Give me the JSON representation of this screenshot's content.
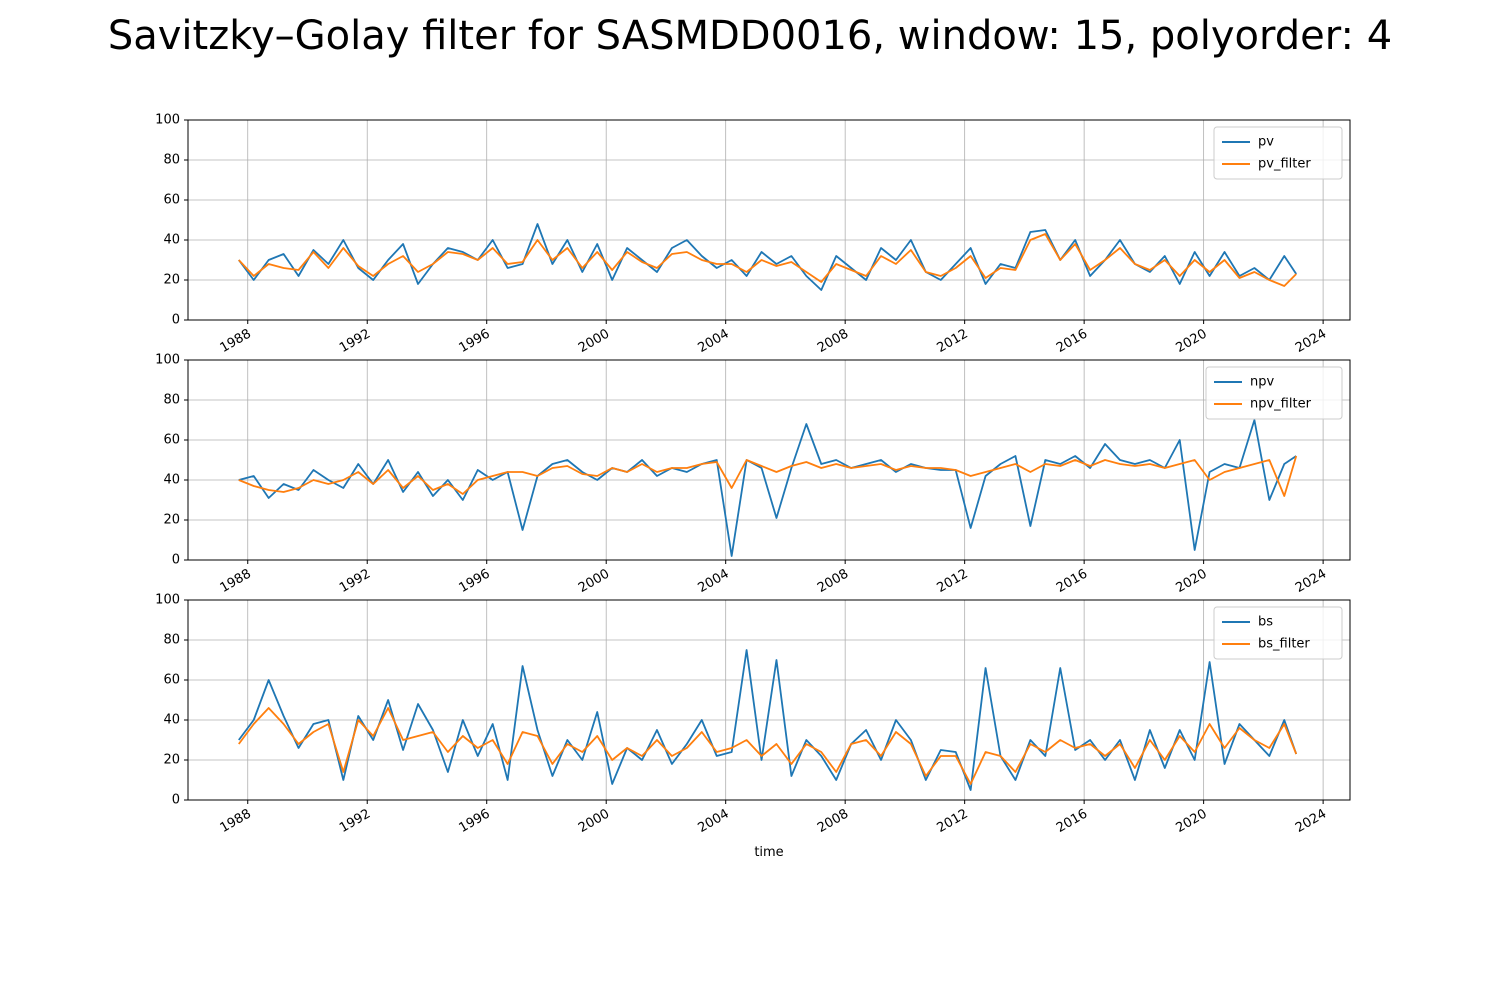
{
  "title": "Savitzky–Golay filter for SASMDD0016, window: 15, polyorder: 4",
  "chart_data": [
    {
      "type": "line",
      "legend": "upper right",
      "grid": true,
      "xlim": [
        1986.0,
        2024.9
      ],
      "xticks": [
        1988,
        1992,
        1996,
        2000,
        2004,
        2008,
        2012,
        2016,
        2020,
        2024
      ],
      "ylim": [
        0,
        100
      ],
      "yticks": [
        0,
        20,
        40,
        60,
        80,
        100
      ],
      "x": [
        1987.7,
        1988.2,
        1988.7,
        1989.2,
        1989.7,
        1990.2,
        1990.7,
        1991.2,
        1991.7,
        1992.2,
        1992.7,
        1993.2,
        1993.7,
        1994.2,
        1994.7,
        1995.2,
        1995.7,
        1996.2,
        1996.7,
        1997.2,
        1997.7,
        1998.2,
        1998.7,
        1999.2,
        1999.7,
        2000.2,
        2000.7,
        2001.2,
        2001.7,
        2002.2,
        2002.7,
        2003.2,
        2003.7,
        2004.2,
        2004.7,
        2005.2,
        2005.7,
        2006.2,
        2006.7,
        2007.2,
        2007.7,
        2008.2,
        2008.7,
        2009.2,
        2009.7,
        2010.2,
        2010.7,
        2011.2,
        2011.7,
        2012.2,
        2012.7,
        2013.2,
        2013.7,
        2014.2,
        2014.7,
        2015.2,
        2015.7,
        2016.2,
        2016.7,
        2017.2,
        2017.7,
        2018.2,
        2018.7,
        2019.2,
        2019.7,
        2020.2,
        2020.7,
        2021.2,
        2021.7,
        2022.2,
        2022.7,
        2023.1
      ],
      "series": [
        {
          "name": "pv",
          "color": "#1f77b4",
          "values": [
            30,
            20,
            30,
            33,
            22,
            35,
            28,
            40,
            26,
            20,
            30,
            38,
            18,
            28,
            36,
            34,
            30,
            40,
            26,
            28,
            48,
            28,
            40,
            24,
            38,
            20,
            36,
            30,
            24,
            36,
            40,
            32,
            26,
            30,
            22,
            34,
            28,
            32,
            22,
            15,
            32,
            26,
            20,
            36,
            30,
            40,
            24,
            20,
            28,
            36,
            18,
            28,
            26,
            44,
            45,
            30,
            40,
            22,
            30,
            40,
            28,
            24,
            32,
            18,
            34,
            22,
            34,
            22,
            26,
            20,
            32,
            23
          ]
        },
        {
          "name": "pv_filter",
          "color": "#ff7f0e",
          "values": [
            30,
            22,
            28,
            26,
            25,
            34,
            26,
            36,
            27,
            22,
            28,
            32,
            24,
            28,
            34,
            33,
            30,
            36,
            28,
            29,
            40,
            30,
            36,
            26,
            34,
            25,
            34,
            29,
            26,
            33,
            34,
            30,
            28,
            28,
            24,
            30,
            27,
            29,
            24,
            19,
            28,
            25,
            22,
            32,
            28,
            35,
            24,
            22,
            26,
            32,
            21,
            26,
            25,
            40,
            43,
            30,
            38,
            25,
            30,
            36,
            28,
            25,
            30,
            22,
            30,
            24,
            30,
            21,
            24,
            20,
            17,
            23
          ]
        }
      ]
    },
    {
      "type": "line",
      "legend": "upper right",
      "grid": true,
      "xlim": [
        1986.0,
        2024.9
      ],
      "xticks": [
        1988,
        1992,
        1996,
        2000,
        2004,
        2008,
        2012,
        2016,
        2020,
        2024
      ],
      "ylim": [
        0,
        100
      ],
      "yticks": [
        0,
        20,
        40,
        60,
        80,
        100
      ],
      "x": [
        1987.7,
        1988.2,
        1988.7,
        1989.2,
        1989.7,
        1990.2,
        1990.7,
        1991.2,
        1991.7,
        1992.2,
        1992.7,
        1993.2,
        1993.7,
        1994.2,
        1994.7,
        1995.2,
        1995.7,
        1996.2,
        1996.7,
        1997.2,
        1997.7,
        1998.2,
        1998.7,
        1999.2,
        1999.7,
        2000.2,
        2000.7,
        2001.2,
        2001.7,
        2002.2,
        2002.7,
        2003.2,
        2003.7,
        2004.2,
        2004.7,
        2005.2,
        2005.7,
        2006.2,
        2006.7,
        2007.2,
        2007.7,
        2008.2,
        2008.7,
        2009.2,
        2009.7,
        2010.2,
        2010.7,
        2011.2,
        2011.7,
        2012.2,
        2012.7,
        2013.2,
        2013.7,
        2014.2,
        2014.7,
        2015.2,
        2015.7,
        2016.2,
        2016.7,
        2017.2,
        2017.7,
        2018.2,
        2018.7,
        2019.2,
        2019.7,
        2020.2,
        2020.7,
        2021.2,
        2021.7,
        2022.2,
        2022.7,
        2023.1
      ],
      "series": [
        {
          "name": "npv",
          "color": "#1f77b4",
          "values": [
            40,
            42,
            31,
            38,
            35,
            45,
            40,
            36,
            48,
            38,
            50,
            34,
            44,
            32,
            40,
            30,
            45,
            40,
            44,
            15,
            42,
            48,
            50,
            44,
            40,
            46,
            44,
            50,
            42,
            46,
            44,
            48,
            50,
            2,
            50,
            46,
            21,
            46,
            68,
            48,
            50,
            46,
            48,
            50,
            44,
            48,
            46,
            45,
            45,
            16,
            42,
            48,
            52,
            17,
            50,
            48,
            52,
            46,
            58,
            50,
            48,
            50,
            46,
            60,
            5,
            44,
            48,
            46,
            70,
            30,
            48,
            52
          ]
        },
        {
          "name": "npv_filter",
          "color": "#ff7f0e",
          "values": [
            40,
            37,
            35,
            34,
            36,
            40,
            38,
            40,
            44,
            38,
            45,
            36,
            42,
            35,
            38,
            33,
            40,
            42,
            44,
            44,
            42,
            46,
            47,
            43,
            42,
            46,
            44,
            48,
            44,
            46,
            46,
            48,
            49,
            36,
            50,
            47,
            44,
            47,
            49,
            46,
            48,
            46,
            47,
            48,
            45,
            47,
            46,
            46,
            45,
            42,
            44,
            46,
            48,
            44,
            48,
            47,
            50,
            47,
            50,
            48,
            47,
            48,
            46,
            48,
            50,
            40,
            44,
            46,
            48,
            50,
            32,
            52
          ]
        }
      ]
    },
    {
      "type": "line",
      "legend": "upper right",
      "grid": true,
      "xlabel": "time",
      "xlim": [
        1986.0,
        2024.9
      ],
      "xticks": [
        1988,
        1992,
        1996,
        2000,
        2004,
        2008,
        2012,
        2016,
        2020,
        2024
      ],
      "ylim": [
        0,
        100
      ],
      "yticks": [
        0,
        20,
        40,
        60,
        80,
        100
      ],
      "x": [
        1987.7,
        1988.2,
        1988.7,
        1989.2,
        1989.7,
        1990.2,
        1990.7,
        1991.2,
        1991.7,
        1992.2,
        1992.7,
        1993.2,
        1993.7,
        1994.2,
        1994.7,
        1995.2,
        1995.7,
        1996.2,
        1996.7,
        1997.2,
        1997.7,
        1998.2,
        1998.7,
        1999.2,
        1999.7,
        2000.2,
        2000.7,
        2001.2,
        2001.7,
        2002.2,
        2002.7,
        2003.2,
        2003.7,
        2004.2,
        2004.7,
        2005.2,
        2005.7,
        2006.2,
        2006.7,
        2007.2,
        2007.7,
        2008.2,
        2008.7,
        2009.2,
        2009.7,
        2010.2,
        2010.7,
        2011.2,
        2011.7,
        2012.2,
        2012.7,
        2013.2,
        2013.7,
        2014.2,
        2014.7,
        2015.2,
        2015.7,
        2016.2,
        2016.7,
        2017.2,
        2017.7,
        2018.2,
        2018.7,
        2019.2,
        2019.7,
        2020.2,
        2020.7,
        2021.2,
        2021.7,
        2022.2,
        2022.7,
        2023.1
      ],
      "series": [
        {
          "name": "bs",
          "color": "#1f77b4",
          "values": [
            30,
            40,
            60,
            42,
            26,
            38,
            40,
            10,
            42,
            30,
            50,
            25,
            48,
            35,
            14,
            40,
            22,
            38,
            10,
            67,
            35,
            12,
            30,
            20,
            44,
            8,
            26,
            20,
            35,
            18,
            28,
            40,
            22,
            24,
            75,
            20,
            70,
            12,
            30,
            22,
            10,
            28,
            35,
            20,
            40,
            30,
            10,
            25,
            24,
            5,
            66,
            22,
            10,
            30,
            22,
            66,
            25,
            30,
            20,
            30,
            10,
            35,
            16,
            35,
            20,
            69,
            18,
            38,
            30,
            22,
            40,
            23
          ]
        },
        {
          "name": "bs_filter",
          "color": "#ff7f0e",
          "values": [
            28,
            38,
            46,
            38,
            28,
            34,
            38,
            14,
            40,
            32,
            46,
            30,
            32,
            34,
            24,
            32,
            26,
            30,
            18,
            34,
            32,
            18,
            28,
            24,
            32,
            20,
            26,
            22,
            30,
            22,
            26,
            34,
            24,
            26,
            30,
            22,
            28,
            18,
            28,
            24,
            14,
            28,
            30,
            22,
            34,
            28,
            12,
            22,
            22,
            8,
            24,
            22,
            14,
            28,
            24,
            30,
            26,
            28,
            22,
            28,
            16,
            30,
            20,
            32,
            24,
            38,
            26,
            36,
            30,
            26,
            38,
            23
          ]
        }
      ]
    }
  ]
}
